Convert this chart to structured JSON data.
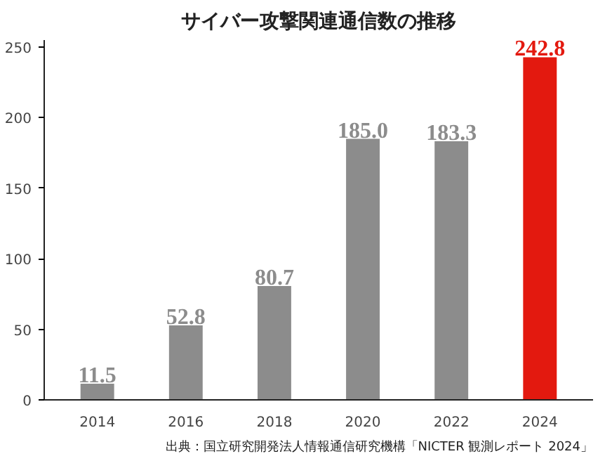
{
  "chart_data": {
    "type": "bar",
    "title": "サイバー攻撃関連通信数の推移",
    "categories": [
      "2014",
      "2016",
      "2018",
      "2020",
      "2022",
      "2024"
    ],
    "values": [
      11.5,
      52.8,
      80.7,
      185.0,
      183.3,
      242.8
    ],
    "value_labels": [
      "11.5",
      "52.8",
      "80.7",
      "185.0",
      "183.3",
      "242.8"
    ],
    "colors": [
      "#8c8c8c",
      "#8c8c8c",
      "#8c8c8c",
      "#8c8c8c",
      "#8c8c8c",
      "#e3190f"
    ],
    "ylim": [
      0,
      255
    ],
    "yticks": [
      0,
      50,
      100,
      150,
      200,
      250
    ],
    "grid": false,
    "annotations": [
      "出典：国立研究開発法人情報通信研究機構「NICTER 観測レポート 2024」"
    ]
  }
}
